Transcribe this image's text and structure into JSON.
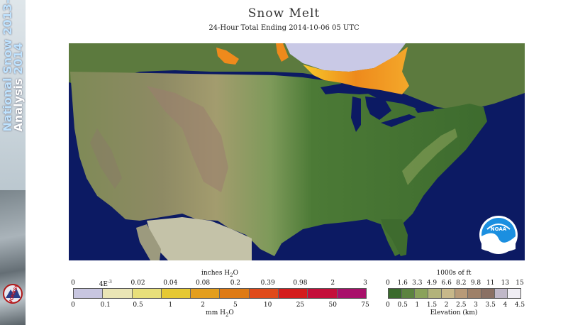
{
  "sidebar": {
    "line1": "National Snow",
    "line1_year": "2013-",
    "line2": "Analysis",
    "line2_year": "2014",
    "logo_text": "NOHRSC"
  },
  "header": {
    "title": "Snow Melt",
    "subtitle": "24-Hour Total Ending 2014-10-06 05 UTC"
  },
  "map": {
    "noaa_logo_text": "NOAA",
    "colors": {
      "ocean": "#0c1a63",
      "land_low": "#3e6b2e",
      "land_mid": "#7a8a4e",
      "land_high": "#8a7a68",
      "snow_melt_orange": "#f08a1c",
      "snow_melt_yellow": "#f7d22a",
      "snow_cover": "#c9c9e6",
      "lakes": "#0c1a63",
      "mexico_gray": "#c4c2a8"
    }
  },
  "melt_legend": {
    "units_top": "inches H",
    "units_top_sub": "2",
    "units_top_end": "O",
    "inch_labels": [
      "0",
      "4E",
      "0.02",
      "0.04",
      "0.08",
      "0.2",
      "0.39",
      "0.98",
      "2",
      "3"
    ],
    "inch_sup": "-3",
    "mm_labels": [
      "0",
      "0.1",
      "0.5",
      "1",
      "2",
      "5",
      "10",
      "25",
      "50",
      "75"
    ],
    "units_bottom": "mm H",
    "units_bottom_sub": "2",
    "units_bottom_end": "O",
    "colors": [
      "#c8c6e0",
      "#eae5b5",
      "#e8df7a",
      "#e6c833",
      "#e39e1e",
      "#de7a14",
      "#e04a1a",
      "#d41c1c",
      "#c40f3a",
      "#a8106a"
    ]
  },
  "elev_legend": {
    "units_top": "1000s of ft",
    "ft_labels": [
      "0",
      "1.6",
      "3.3",
      "4.9",
      "6.6",
      "8.2",
      "9.8",
      "11",
      "13",
      "15"
    ],
    "km_labels": [
      "0",
      "0.5",
      "1",
      "1.5",
      "2",
      "2.5",
      "3",
      "3.5",
      "4",
      "4.5"
    ],
    "units_bottom": "Elevation (km)",
    "colors": [
      "#3a6a2c",
      "#5c8340",
      "#8aa25a",
      "#b3b37a",
      "#c8b88a",
      "#b89a78",
      "#9e8068",
      "#8a7064",
      "#c0b8c8",
      "#f0eef4"
    ]
  }
}
